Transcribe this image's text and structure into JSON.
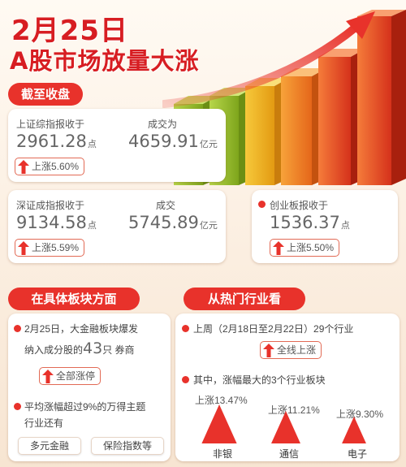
{
  "headline": {
    "date": "2月25日",
    "title": "A股市场放量大涨"
  },
  "close_section": {
    "label": "截至收盘",
    "sh": {
      "index_label": "上证综指报收于",
      "index_value": "2961.28",
      "index_unit": "点",
      "turnover_label": "成交为",
      "turnover_value": "4659.91",
      "turnover_unit": "亿元",
      "change": "上涨5.60%"
    },
    "sz": {
      "index_label": "深证成指报收于",
      "index_value": "9134.58",
      "index_unit": "点",
      "turnover_label": "成交",
      "turnover_value": "5745.89",
      "turnover_unit": "亿元",
      "change": "上涨5.59%"
    },
    "cy": {
      "index_label": "创业板报收于",
      "index_value": "1536.37",
      "index_unit": "点",
      "change": "上涨5.50%"
    }
  },
  "sector_section": {
    "label": "在具体板块方面",
    "line1": "2月25日，大金融板块爆发",
    "line2_prefix": "纳入成分股的",
    "line2_number": "43",
    "line2_suffix": "只  券商",
    "limit_up": "全部涨停",
    "line3": "平均涨幅超过9%的万得主题",
    "line4": "行业还有",
    "themes": [
      "多元金融",
      "保险指数等"
    ]
  },
  "industry_section": {
    "label": "从热门行业看",
    "week_line": "上周（2月18日至2月22日）29个行业",
    "all_up": "全线上涨",
    "top3_line": "其中，涨幅最大的3个行业板块",
    "top3": [
      {
        "change": "上涨13.47%",
        "name": "非银",
        "pct": 13.47
      },
      {
        "change": "上涨11.21%",
        "name": "通信",
        "pct": 11.21
      },
      {
        "change": "上涨9.30%",
        "name": "电子",
        "pct": 9.3
      }
    ]
  },
  "colors": {
    "accent": "#e8322b",
    "headline": "#d71d22",
    "bar_green": "#9ac22c",
    "bar_orange": "#f08a1c"
  }
}
